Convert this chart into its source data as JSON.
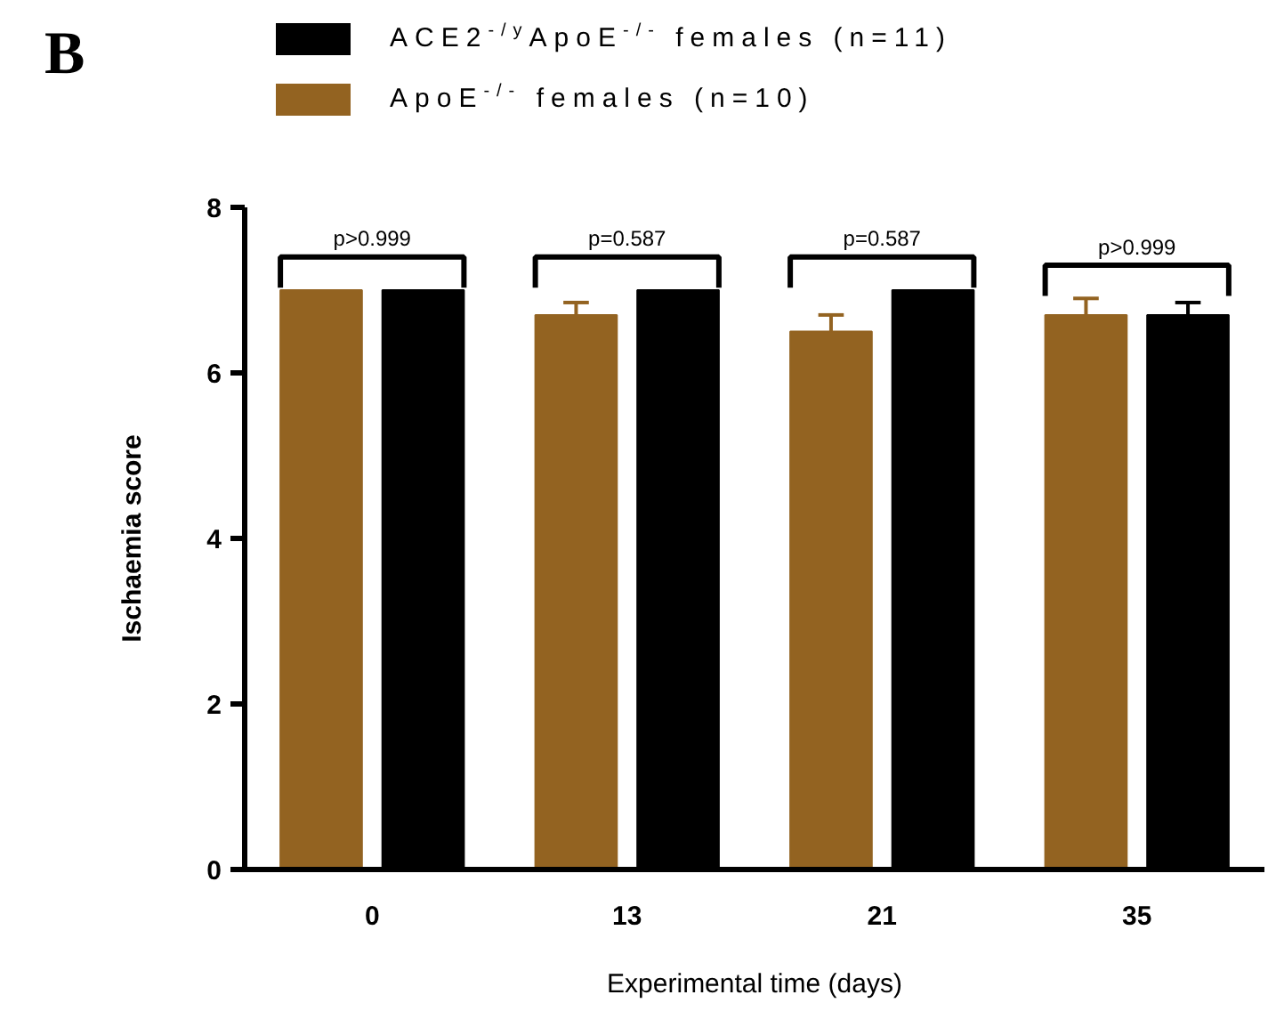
{
  "chart_data": {
    "type": "bar",
    "title": "B",
    "xlabel": "Experimental time (days)",
    "ylabel": "Ischaemia score",
    "categories": [
      "0",
      "13",
      "21",
      "35"
    ],
    "series": [
      {
        "name": "ApoE$^{-/-}$ females (n=10)",
        "color": "#936321",
        "values": [
          7,
          6.7,
          6.5,
          6.7
        ],
        "errors": [
          null,
          [
            6.7,
            6.85
          ],
          [
            6.5,
            6.7
          ],
          [
            6.7,
            6.9
          ]
        ]
      },
      {
        "name": "ACE2$^{-/y}$ApoE$^{-/-}$ females (n=11)",
        "color": "#000000",
        "values": [
          7,
          7,
          7,
          6.7
        ],
        "errors": [
          null,
          null,
          null,
          [
            6.7,
            6.85
          ]
        ]
      }
    ],
    "ylim": [
      0,
      8
    ],
    "yticks": [
      0,
      2,
      4,
      6,
      8
    ],
    "grid": false,
    "legend": "top",
    "annotations": [
      "p>0.999",
      "p=0.587",
      "p=0.587",
      "p>0.999"
    ]
  }
}
